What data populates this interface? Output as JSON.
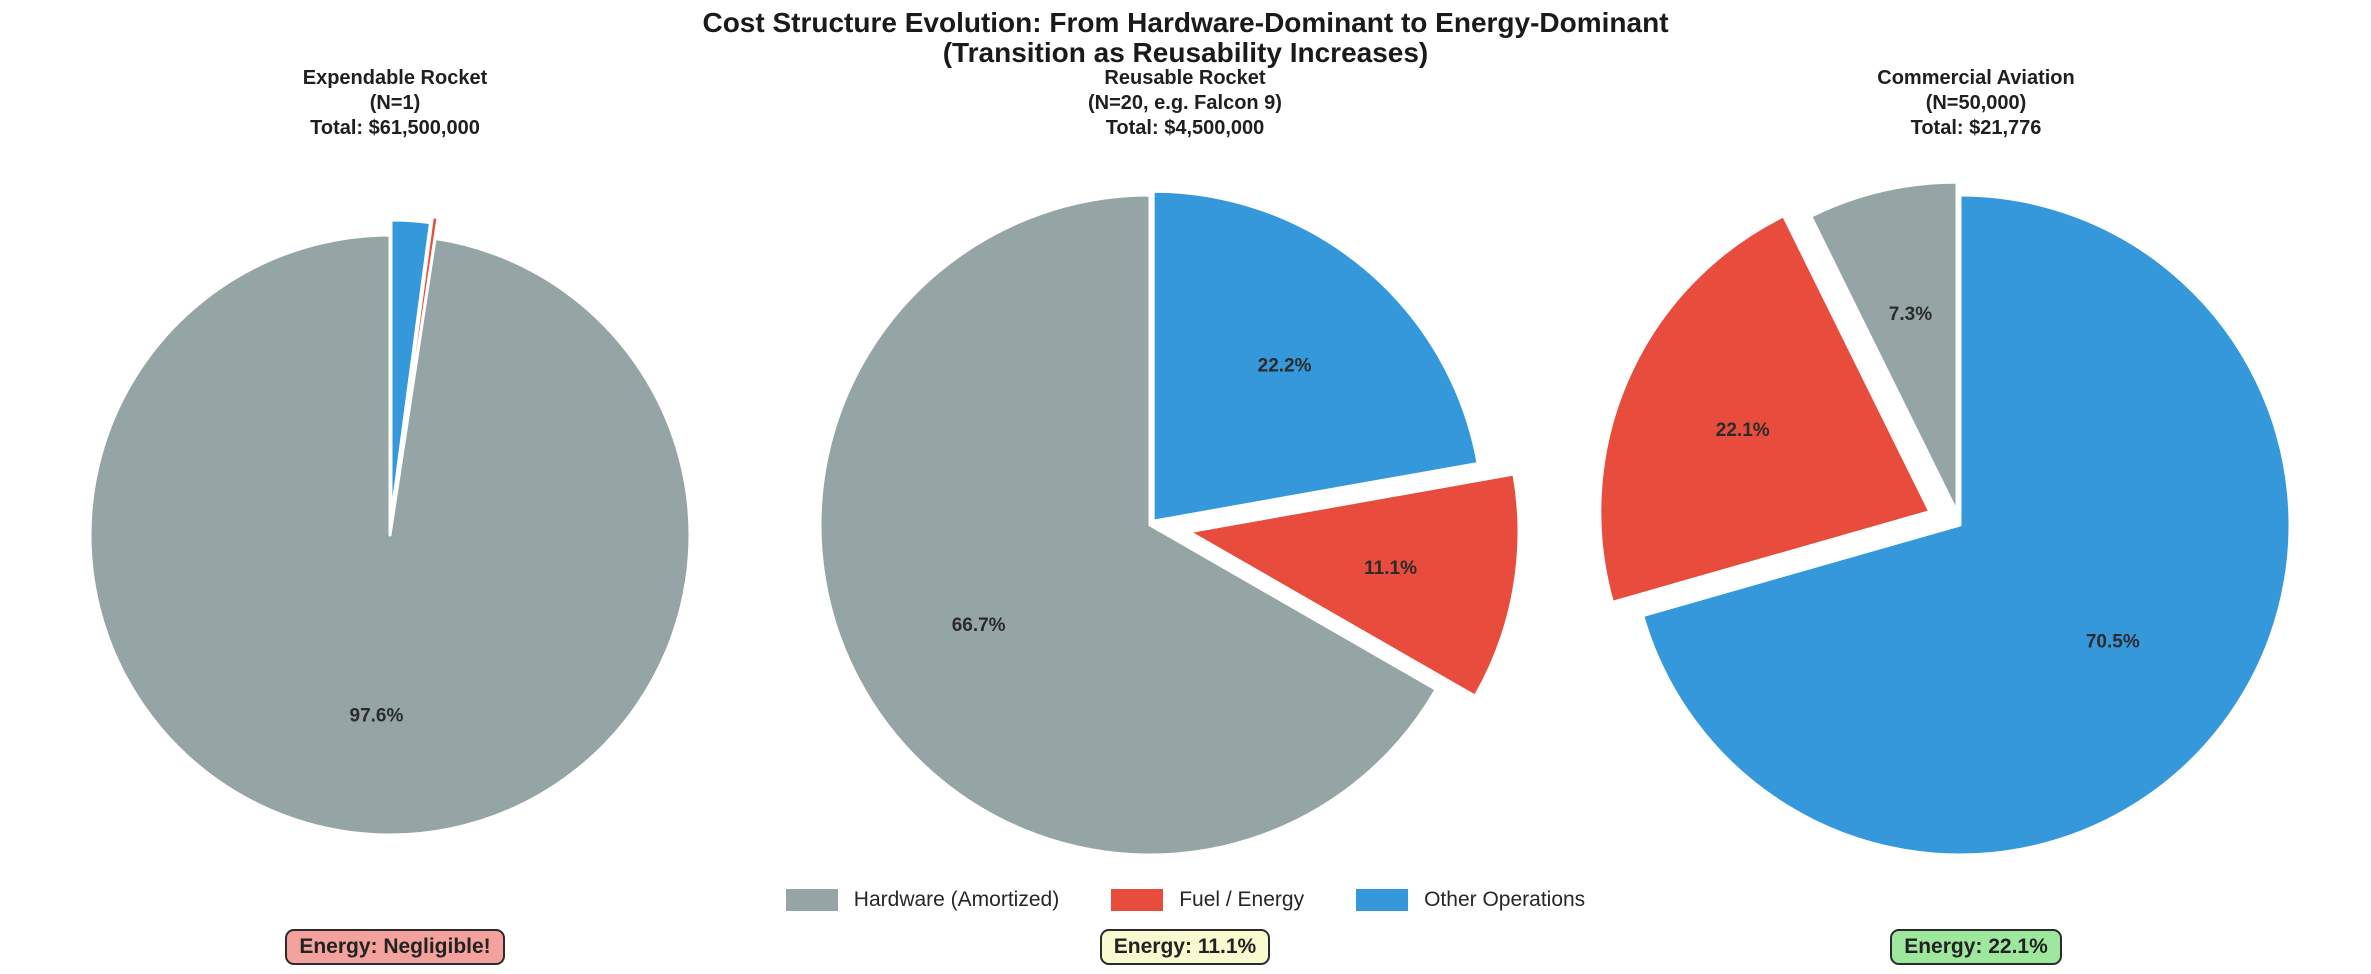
{
  "title": {
    "line1": "Cost Structure Evolution: From Hardware-Dominant to Energy-Dominant",
    "line2": "(Transition as Reusability Increases)"
  },
  "colors": {
    "hardware": "#95a5a6",
    "fuel": "#e74c3c",
    "other": "#3498db",
    "annotation_pink": "#f4a29e",
    "annotation_yellow": "#fafad0",
    "annotation_green": "#9ee89e",
    "wedge_edge": "#ffffff",
    "text_dark": "#2b2b2b"
  },
  "legend": {
    "items": [
      {
        "label": "Hardware (Amortized)",
        "color_key": "hardware"
      },
      {
        "label": "Fuel / Energy",
        "color_key": "fuel"
      },
      {
        "label": "Other Operations",
        "color_key": "other"
      }
    ]
  },
  "chart_data": [
    {
      "type": "pie",
      "title": "Expendable Rocket",
      "subtitle": "(N=1)",
      "total_label": "Total: $61,500,000",
      "total_value": 61500000,
      "categories": [
        "Hardware (Amortized)",
        "Fuel / Energy",
        "Other Operations"
      ],
      "values_pct": [
        97.6,
        0.3,
        2.1
      ],
      "autopct_labels": [
        "97.6%",
        "",
        ""
      ],
      "start_angle_deg": 90,
      "direction": "counterclockwise",
      "annotation": {
        "text": "Energy: Negligible!",
        "bg_key": "annotation_pink"
      }
    },
    {
      "type": "pie",
      "title": "Reusable Rocket",
      "subtitle": "(N=20, e.g. Falcon 9)",
      "total_label": "Total: $4,500,000",
      "total_value": 4500000,
      "categories": [
        "Hardware (Amortized)",
        "Fuel / Energy",
        "Other Operations"
      ],
      "values_pct": [
        66.7,
        11.1,
        22.2
      ],
      "autopct_labels": [
        "66.7%",
        "11.1%",
        "22.2%"
      ],
      "start_angle_deg": 90,
      "direction": "counterclockwise",
      "annotation": {
        "text": "Energy: 11.1%",
        "bg_key": "annotation_yellow"
      }
    },
    {
      "type": "pie",
      "title": "Commercial Aviation",
      "subtitle": "(N=50,000)",
      "total_label": "Total: $21,776",
      "total_value": 21776,
      "categories": [
        "Hardware (Amortized)",
        "Fuel / Energy",
        "Other Operations"
      ],
      "values_pct": [
        7.3,
        22.1,
        70.5
      ],
      "autopct_labels": [
        "7.3%",
        "22.1%",
        "70.5%"
      ],
      "start_angle_deg": 90,
      "direction": "counterclockwise",
      "annotation": {
        "text": "Energy: 22.1%",
        "bg_key": "annotation_green"
      }
    }
  ]
}
